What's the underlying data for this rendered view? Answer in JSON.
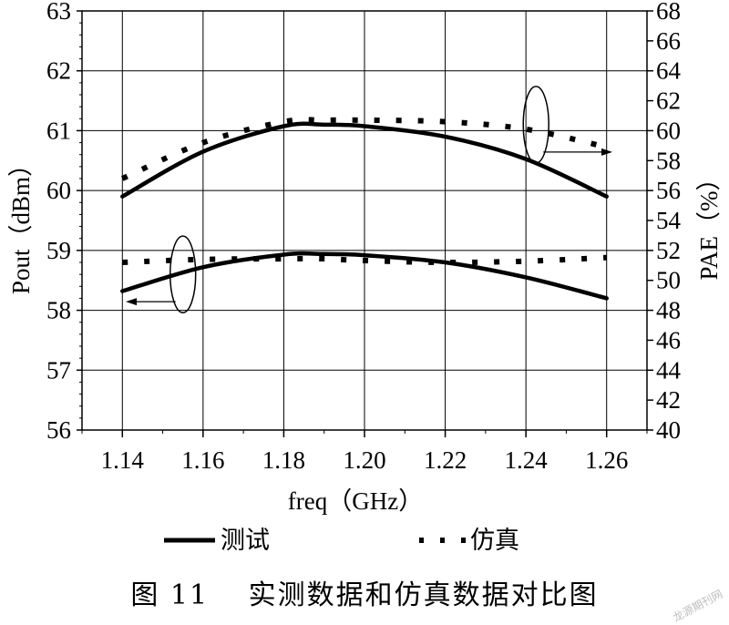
{
  "chart_data": {
    "type": "line",
    "xlabel": "freq（GHz）",
    "ylabel": "Pout（dBm）",
    "y2label": "PAE（%）",
    "xlim": [
      1.13,
      1.27
    ],
    "ylim": [
      56,
      63
    ],
    "y2lim": [
      40,
      68
    ],
    "x_ticks": [
      "1.14",
      "1.16",
      "1.18",
      "1.20",
      "1.22",
      "1.24",
      "1.26"
    ],
    "x_tick_values": [
      1.14,
      1.16,
      1.18,
      1.2,
      1.22,
      1.24,
      1.26
    ],
    "y_ticks": [
      "56",
      "57",
      "58",
      "59",
      "60",
      "61",
      "62",
      "63"
    ],
    "y_tick_values": [
      56,
      57,
      58,
      59,
      60,
      61,
      62,
      63
    ],
    "y2_ticks": [
      "40",
      "42",
      "44",
      "46",
      "48",
      "50",
      "52",
      "54",
      "56",
      "58",
      "60",
      "62",
      "64",
      "66",
      "68"
    ],
    "y2_tick_values": [
      40,
      42,
      44,
      46,
      48,
      50,
      52,
      54,
      56,
      58,
      60,
      62,
      64,
      66,
      68
    ],
    "grid": true,
    "legend": {
      "placement": "bottom",
      "entries": [
        "测试",
        "仿真"
      ]
    },
    "series": [
      {
        "group": "PAE",
        "axis": "right",
        "style": "solid",
        "x": [
          1.14,
          1.16,
          1.18,
          1.19,
          1.2,
          1.22,
          1.24,
          1.26
        ],
        "y": [
          55.6,
          58.6,
          60.3,
          60.4,
          60.3,
          59.6,
          58.1,
          55.6
        ]
      },
      {
        "group": "PAE",
        "axis": "right",
        "style": "dotted",
        "x": [
          1.14,
          1.16,
          1.18,
          1.19,
          1.2,
          1.22,
          1.24,
          1.26
        ],
        "y": [
          56.8,
          59.2,
          60.6,
          60.7,
          60.7,
          60.6,
          60.1,
          58.9
        ]
      },
      {
        "group": "Pout",
        "axis": "left",
        "style": "solid",
        "x": [
          1.14,
          1.16,
          1.18,
          1.19,
          1.2,
          1.22,
          1.24,
          1.26
        ],
        "y": [
          58.32,
          58.72,
          58.93,
          58.94,
          58.92,
          58.8,
          58.55,
          58.2
        ]
      },
      {
        "group": "Pout",
        "axis": "left",
        "style": "dotted",
        "x": [
          1.14,
          1.16,
          1.18,
          1.19,
          1.2,
          1.22,
          1.24,
          1.26
        ],
        "y": [
          58.8,
          58.85,
          58.86,
          58.86,
          58.83,
          58.8,
          58.82,
          58.88
        ]
      }
    ],
    "annotations": [
      {
        "type": "ellipse-arrow",
        "target": "PAE",
        "x": 1.2425,
        "y": 60.4,
        "arrow_to": "right"
      },
      {
        "type": "ellipse-arrow",
        "target": "Pout",
        "x": 1.155,
        "y": 58.6,
        "arrow_to": "left"
      }
    ]
  },
  "caption": "图 11　 实测数据和仿真数据对比图",
  "watermark": "龙源期刊网"
}
